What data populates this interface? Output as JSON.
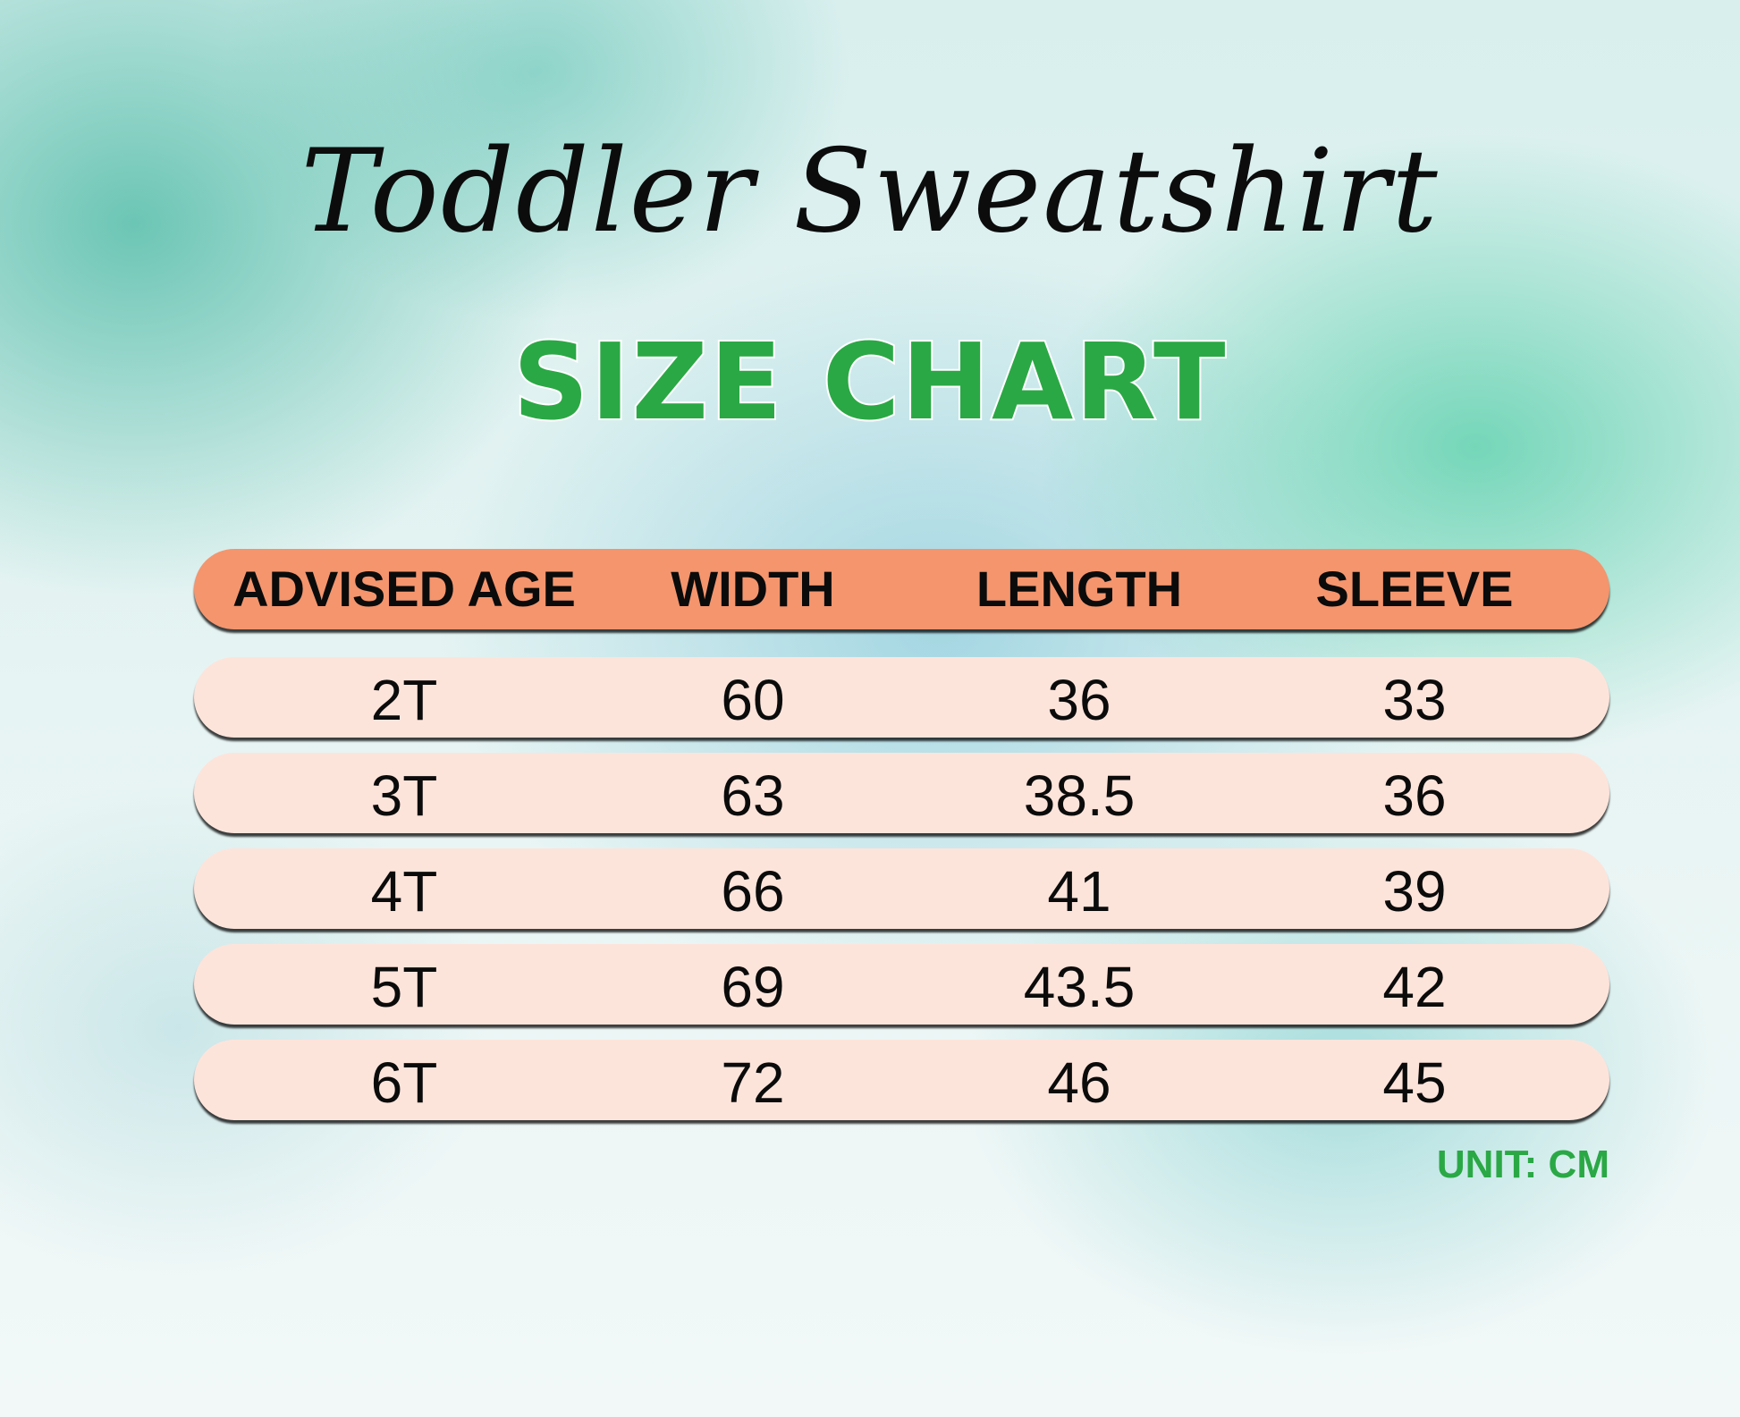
{
  "title": "Toddler Sweatshirt",
  "subtitle": "SIZE CHART",
  "table": {
    "headers": [
      "ADVISED AGE",
      "WIDTH",
      "LENGTH",
      "SLEEVE"
    ],
    "rows": [
      [
        "2T",
        "60",
        "36",
        "33"
      ],
      [
        "3T",
        "63",
        "38.5",
        "36"
      ],
      [
        "4T",
        "66",
        "41",
        "39"
      ],
      [
        "5T",
        "69",
        "43.5",
        "42"
      ],
      [
        "6T",
        "72",
        "46",
        "45"
      ]
    ]
  },
  "unit": "UNIT: CM",
  "colors": {
    "header": "#f4956e",
    "row": "#fde4db",
    "accent_green": "#2aa845"
  }
}
